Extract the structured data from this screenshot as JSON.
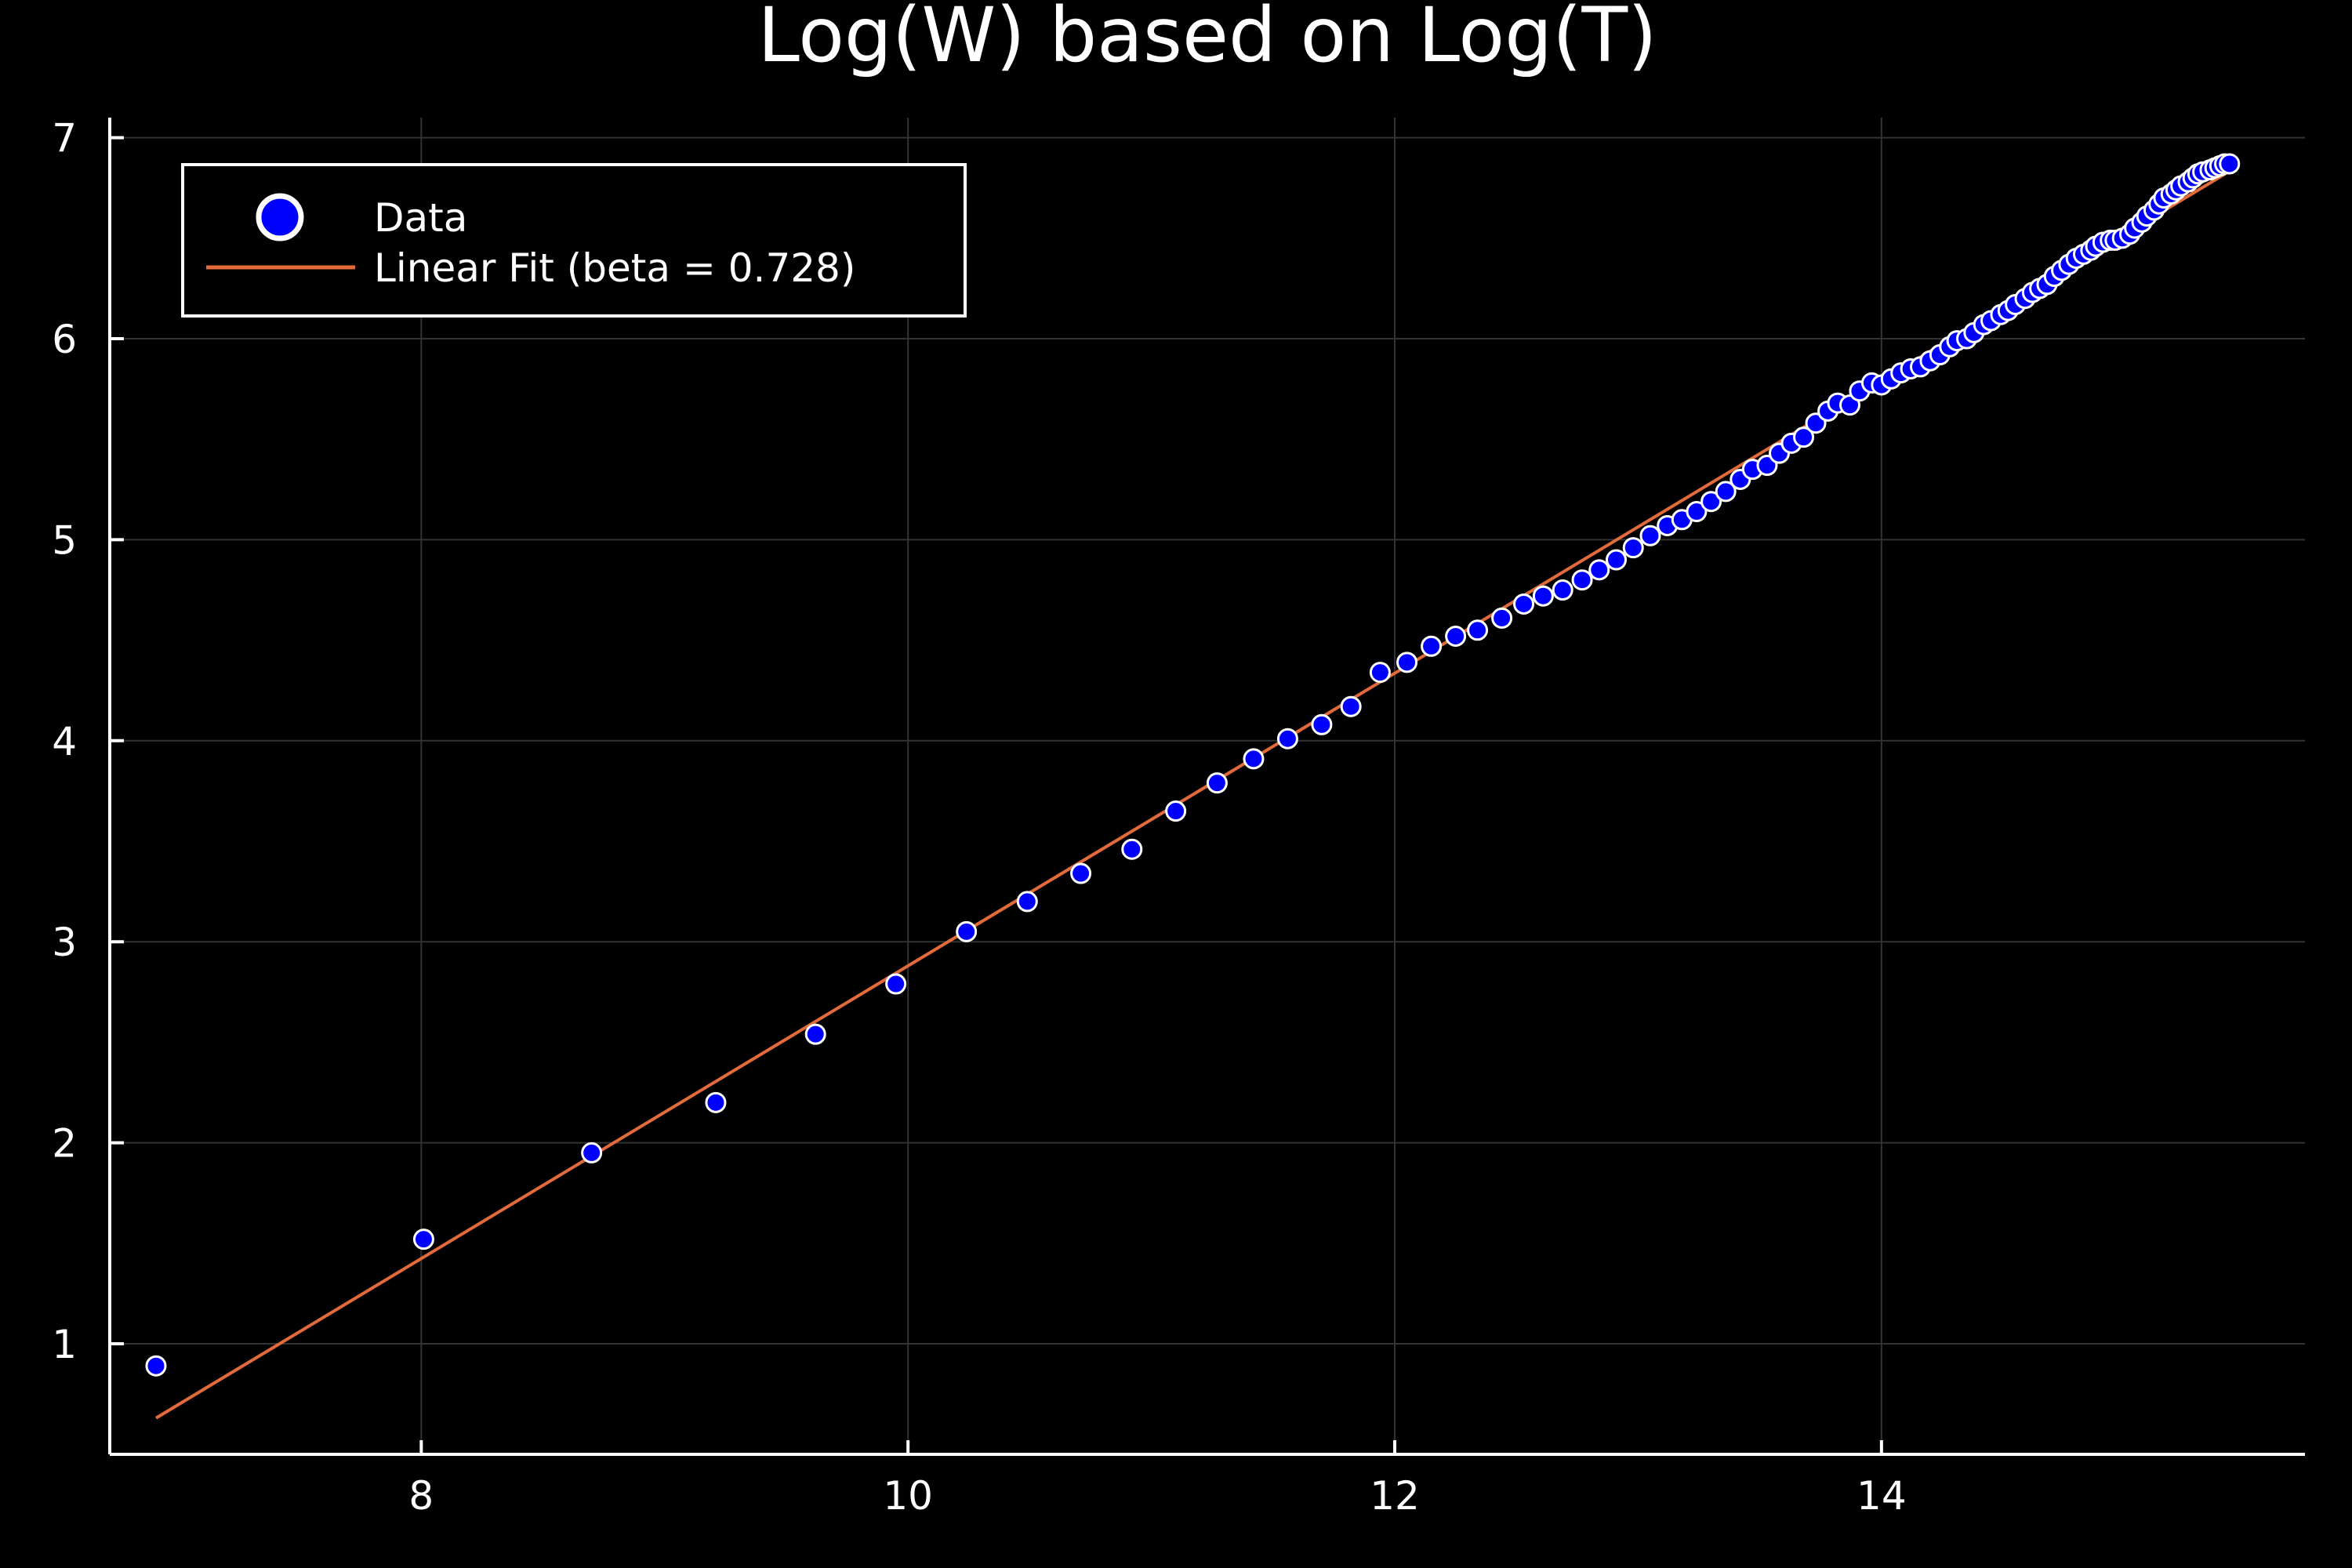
{
  "chart_data": {
    "type": "scatter",
    "title": "Log(W) based on Log(T)",
    "xlabel": "",
    "ylabel": "",
    "xlim": [
      6.72,
      15.74
    ],
    "ylim": [
      0.45,
      7.1
    ],
    "x_ticks": [
      8,
      10,
      12,
      14
    ],
    "y_ticks": [
      1,
      2,
      3,
      4,
      5,
      6,
      7
    ],
    "x_tick_labels": [
      "8",
      "10",
      "12",
      "14"
    ],
    "y_tick_labels": [
      "1",
      "2",
      "3",
      "4",
      "5",
      "6",
      "7"
    ],
    "grid": true,
    "legend_position": "top-left",
    "background_color": "#000000",
    "foreground_color": "#ffffff",
    "grid_color": "#333333",
    "series": [
      {
        "name": "Data",
        "kind": "scatter",
        "color": "#0000ff",
        "edge_color": "#ffffff",
        "x": [
          6.91,
          8.01,
          8.7,
          9.21,
          9.62,
          9.95,
          10.24,
          10.49,
          10.71,
          10.92,
          11.1,
          11.27,
          11.42,
          11.56,
          11.7,
          11.82,
          11.94,
          12.05,
          12.15,
          12.25,
          12.34,
          12.44,
          12.53,
          12.61,
          12.69,
          12.77,
          12.84,
          12.91,
          12.98,
          13.05,
          13.12,
          13.18,
          13.24,
          13.3,
          13.36,
          13.42,
          13.47,
          13.53,
          13.58,
          13.63,
          13.68,
          13.73,
          13.78,
          13.82,
          13.87,
          13.91,
          13.96,
          14.0,
          14.04,
          14.08,
          14.12,
          14.16,
          14.2,
          14.24,
          14.28,
          14.31,
          14.35,
          14.38,
          14.42,
          14.45,
          14.49,
          14.52,
          14.55,
          14.59,
          14.62,
          14.65,
          14.68,
          14.71,
          14.74,
          14.77,
          14.8,
          14.83,
          14.86,
          14.88,
          14.91,
          14.94,
          14.96,
          14.99,
          15.02,
          15.04,
          15.07,
          15.09,
          15.12,
          15.14,
          15.16,
          15.19,
          15.21,
          15.23,
          15.26,
          15.28,
          15.3,
          15.32,
          15.35,
          15.37,
          15.39,
          15.41,
          15.43
        ],
        "y": [
          0.89,
          1.52,
          1.95,
          2.2,
          2.54,
          2.79,
          3.05,
          3.2,
          3.34,
          3.46,
          3.65,
          3.79,
          3.91,
          4.01,
          4.08,
          4.17,
          4.34,
          4.39,
          4.47,
          4.52,
          4.55,
          4.61,
          4.68,
          4.72,
          4.75,
          4.8,
          4.85,
          4.9,
          4.96,
          5.02,
          5.07,
          5.1,
          5.14,
          5.19,
          5.24,
          5.3,
          5.35,
          5.37,
          5.43,
          5.48,
          5.51,
          5.58,
          5.64,
          5.68,
          5.67,
          5.74,
          5.78,
          5.77,
          5.8,
          5.83,
          5.85,
          5.86,
          5.89,
          5.92,
          5.96,
          5.99,
          6.0,
          6.03,
          6.07,
          6.09,
          6.12,
          6.14,
          6.17,
          6.2,
          6.23,
          6.25,
          6.27,
          6.31,
          6.34,
          6.37,
          6.4,
          6.42,
          6.44,
          6.46,
          6.48,
          6.49,
          6.49,
          6.5,
          6.52,
          6.55,
          6.58,
          6.61,
          6.64,
          6.67,
          6.7,
          6.72,
          6.74,
          6.76,
          6.78,
          6.8,
          6.82,
          6.83,
          6.84,
          6.85,
          6.86,
          6.87,
          6.87
        ]
      },
      {
        "name": "Linear Fit (beta = 0.728)",
        "kind": "line",
        "color": "#e26a3b",
        "slope": 0.728,
        "intercept": -4.4,
        "x_range": [
          6.91,
          15.43
        ]
      }
    ]
  }
}
